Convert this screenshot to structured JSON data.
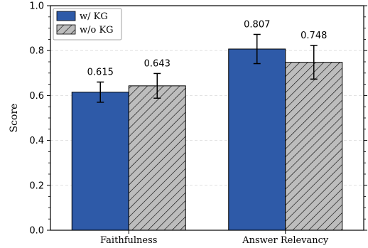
{
  "chart_data": {
    "type": "bar",
    "categories": [
      "Faithfulness",
      "Answer Relevancy"
    ],
    "series": [
      {
        "name": "w/ KG",
        "values": [
          0.615,
          0.807
        ],
        "errors": [
          0.045,
          0.065
        ],
        "labels": [
          "0.615",
          "0.807"
        ],
        "color": "#2e5aa8",
        "hatch": false
      },
      {
        "name": "w/o KG",
        "values": [
          0.643,
          0.748
        ],
        "errors": [
          0.055,
          0.075
        ],
        "labels": [
          "0.643",
          "0.748"
        ],
        "color": "#bdbdbd",
        "hatch": true
      }
    ],
    "title": "",
    "xlabel": "",
    "ylabel": "Score",
    "ylim": [
      0.0,
      1.0
    ],
    "yticks": [
      "0.0",
      "0.2",
      "0.4",
      "0.6",
      "0.8",
      "1.0"
    ],
    "grid": true,
    "legend": "top-left"
  }
}
